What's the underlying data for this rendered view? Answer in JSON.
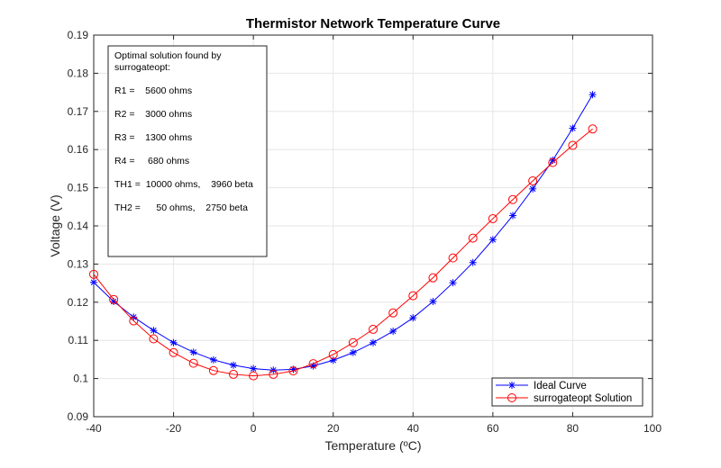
{
  "chart_data": {
    "type": "line",
    "title": "Thermistor Network Temperature Curve",
    "xlabel": "Temperature (ºC)",
    "ylabel": "Voltage (V)",
    "xlim": [
      -40,
      100
    ],
    "ylim": [
      0.09,
      0.19
    ],
    "x_ticks": [
      "-40",
      "-20",
      "0",
      "20",
      "40",
      "60",
      "80",
      "100"
    ],
    "y_ticks": [
      "0.09",
      "0.1",
      "0.11",
      "0.12",
      "0.13",
      "0.14",
      "0.15",
      "0.16",
      "0.17",
      "0.18",
      "0.19"
    ],
    "grid": true,
    "legend_position": "bottom-right",
    "annotation": {
      "lines": [
        "Optimal solution found by",
        "surrogateopt:",
        "",
        "R1 =    5600 ohms",
        "",
        "R2 =    3000 ohms",
        "",
        "R3 =    1300 ohms",
        "",
        "R4 =     680 ohms",
        "",
        "TH1 =  10000 ohms,    3960 beta",
        "",
        "TH2 =      50 ohms,    2750 beta"
      ]
    },
    "x": [
      -40,
      -35,
      -30,
      -25,
      -20,
      -15,
      -10,
      -5,
      0,
      5,
      10,
      15,
      20,
      25,
      30,
      35,
      40,
      45,
      50,
      55,
      60,
      65,
      70,
      75,
      80,
      85
    ],
    "series": [
      {
        "name": "Ideal Curve",
        "color": "#0000ff",
        "marker": "asterisk",
        "values": [
          0.1252,
          0.1202,
          0.1161,
          0.1126,
          0.1094,
          0.1069,
          0.1049,
          0.1035,
          0.1026,
          0.1022,
          0.1024,
          0.1033,
          0.1048,
          0.1068,
          0.1094,
          0.1124,
          0.1159,
          0.1202,
          0.1251,
          0.1304,
          0.1364,
          0.1427,
          0.1497,
          0.1572,
          0.1656,
          0.1744
        ]
      },
      {
        "name": "surrogateopt Solution",
        "color": "#ff0000",
        "marker": "circle",
        "values": [
          0.1273,
          0.1207,
          0.1151,
          0.1104,
          0.1068,
          0.104,
          0.1021,
          0.1011,
          0.1007,
          0.1011,
          0.102,
          0.1039,
          0.1063,
          0.1094,
          0.1129,
          0.1172,
          0.1217,
          0.1264,
          0.1316,
          0.1368,
          0.1419,
          0.1469,
          0.1518,
          0.1566,
          0.1611,
          0.1654
        ]
      }
    ]
  }
}
